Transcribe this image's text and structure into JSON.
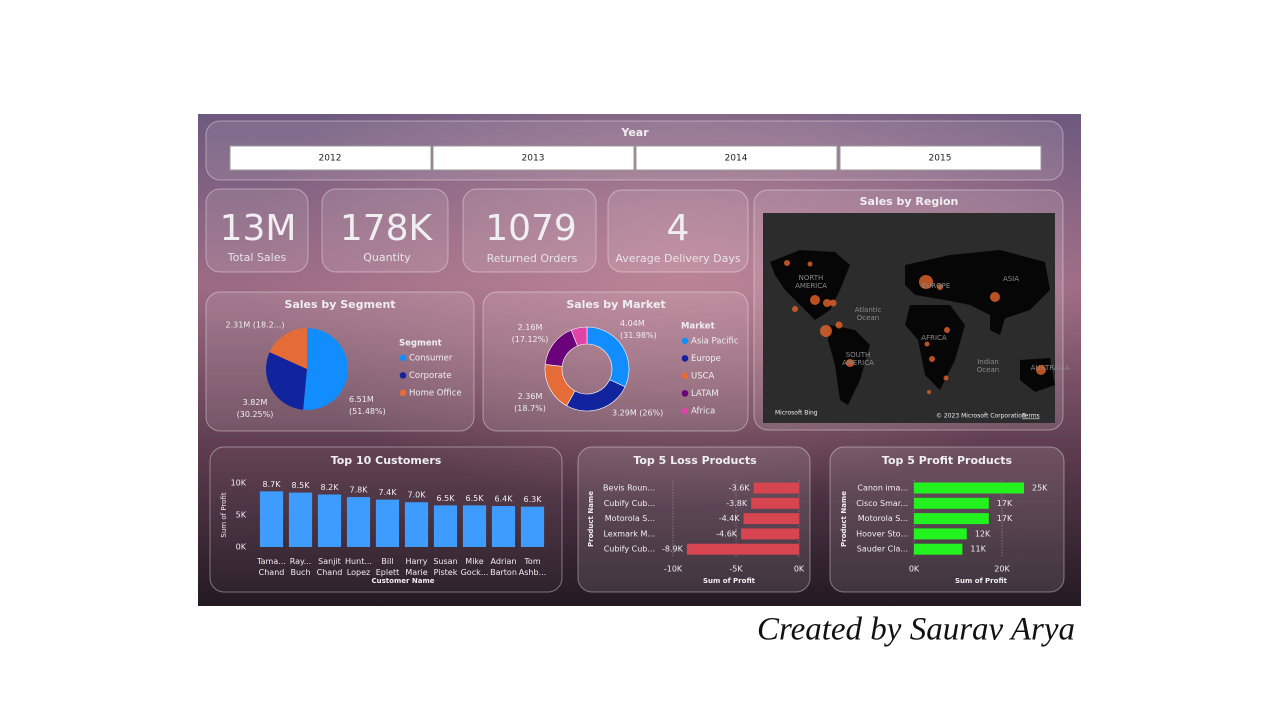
{
  "slicer": {
    "title": "Year",
    "options": [
      "2012",
      "2013",
      "2014",
      "2015"
    ]
  },
  "kpis": [
    {
      "value": "13M",
      "label": "Total Sales"
    },
    {
      "value": "178K",
      "label": "Quantity"
    },
    {
      "value": "1079",
      "label": "Returned Orders"
    },
    {
      "value": "4",
      "label": "Average Delivery Days"
    }
  ],
  "map": {
    "title": "Sales by Region",
    "labels": [
      "NORTH AMERICA",
      "EUROPE",
      "ASIA",
      "Atlantic Ocean",
      "AFRICA",
      "SOUTH AMERICA",
      "Indian Ocean",
      "AUSTRALIA"
    ],
    "attribution": "Microsoft Bing",
    "copyright": "© 2023 Microsoft Corporation",
    "terms": "Terms"
  },
  "chart_data": [
    {
      "type": "pie",
      "title": "Sales by Segment",
      "legend_title": "Segment",
      "categories": [
        "Consumer",
        "Corporate",
        "Home Office"
      ],
      "values": [
        6510000,
        3820000,
        2310000
      ],
      "value_labels": [
        "6.51M (51.48%)",
        "3.82M (30.25%)",
        "2.31M (18.2...)"
      ],
      "colors": [
        "#118DFF",
        "#12239E",
        "#E66C37"
      ]
    },
    {
      "type": "donut",
      "title": "Sales by Market",
      "legend_title": "Market",
      "categories": [
        "Asia Pacific",
        "Europe",
        "USCA",
        "LATAM",
        "Africa"
      ],
      "values": [
        4040000,
        3290000,
        2360000,
        2160000,
        780000
      ],
      "value_labels": [
        "4.04M (31.98%)",
        "3.29M (26%)",
        "2.36M (18.7%)",
        "2.16M (17.12%)",
        null
      ],
      "colors": [
        "#118DFF",
        "#12239E",
        "#E66C37",
        "#6B007B",
        "#E044A7"
      ]
    },
    {
      "type": "bar",
      "title": "Top 10 Customers",
      "x_label": "Customer Name",
      "y_label": "Sum of Profit",
      "categories": [
        "Tama... Chand",
        "Ray... Buch",
        "Sanjit Chand",
        "Hunt... Lopez",
        "Bill Eplett",
        "Harry Marie",
        "Susan Pistek",
        "Mike Gock...",
        "Adrian Barton",
        "Tom Ashb..."
      ],
      "values": [
        8700,
        8500,
        8200,
        7800,
        7400,
        7000,
        6500,
        6500,
        6400,
        6300
      ],
      "value_labels": [
        "8.7K",
        "8.5K",
        "8.2K",
        "7.8K",
        "7.4K",
        "7.0K",
        "6.5K",
        "6.5K",
        "6.4K",
        "6.3K"
      ],
      "color": "#3E9BFF",
      "ylim": [
        0,
        10000
      ],
      "yticks": [
        {
          "value": 0,
          "label": "0K"
        },
        {
          "value": 5000,
          "label": "5K"
        },
        {
          "value": 10000,
          "label": "10K"
        }
      ],
      "grid": false
    },
    {
      "type": "bar",
      "horizontal": true,
      "title": "Top 5 Loss Products",
      "x_label": "Sum of Profit",
      "y_label": "Product Name",
      "categories": [
        "Bevis Roun...",
        "Cubify Cub...",
        "Motorola S...",
        "Lexmark M...",
        "Cubify Cub..."
      ],
      "values": [
        -3600,
        -3800,
        -4400,
        -4600,
        -8900
      ],
      "value_labels": [
        "-3.6K",
        "-3.8K",
        "-4.4K",
        "-4.6K",
        "-8.9K"
      ],
      "color": "#D64550",
      "xlim": [
        -10000,
        0
      ],
      "xticks": [
        {
          "value": -10000,
          "label": "-10K"
        },
        {
          "value": -5000,
          "label": "-5K"
        },
        {
          "value": 0,
          "label": "0K"
        }
      ],
      "grid": true
    },
    {
      "type": "bar",
      "horizontal": true,
      "title": "Top 5 Profit Products",
      "x_label": "Sum of Profit",
      "y_label": "Product Name",
      "categories": [
        "Canon ima...",
        "Cisco Smar...",
        "Motorola S...",
        "Hoover Sto...",
        "Sauder Cla..."
      ],
      "values": [
        25000,
        17000,
        17000,
        12000,
        11000
      ],
      "value_labels": [
        "25K",
        "17K",
        "17K",
        "12K",
        "11K"
      ],
      "color": "#22F21E",
      "xlim": [
        0,
        25000
      ],
      "xticks": [
        {
          "value": 0,
          "label": "0K"
        },
        {
          "value": 20000,
          "label": "20K"
        }
      ],
      "grid": true
    }
  ],
  "caption": "Created by Saurav Arya"
}
